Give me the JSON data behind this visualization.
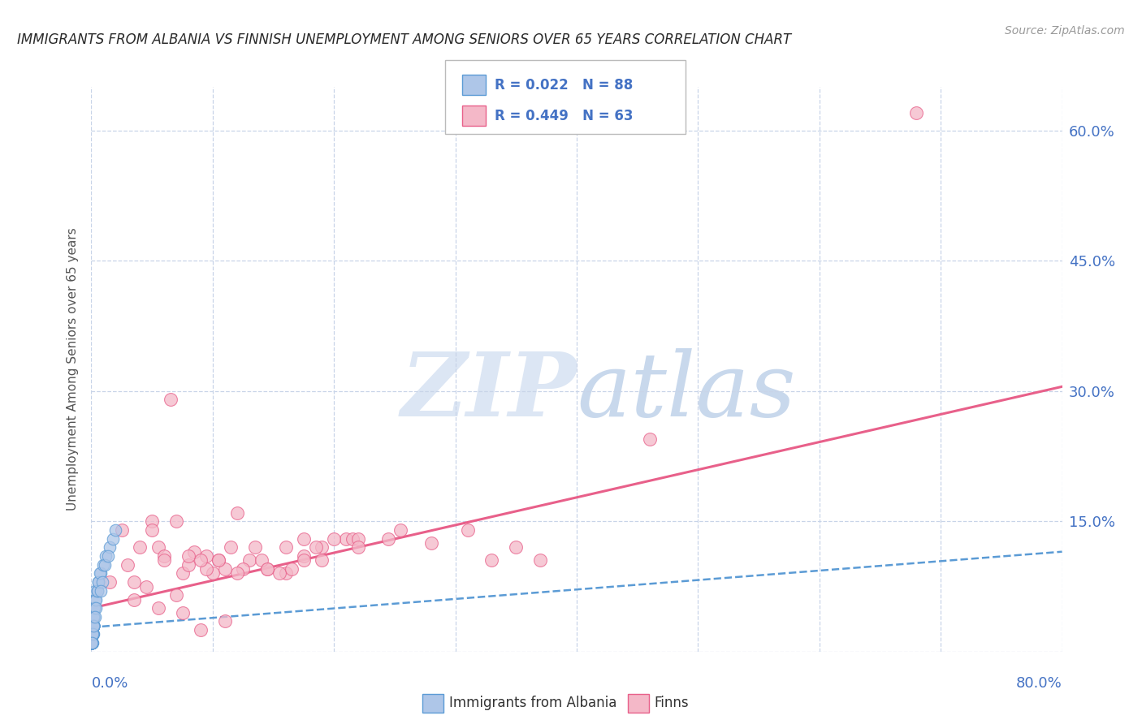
{
  "title": "IMMIGRANTS FROM ALBANIA VS FINNISH UNEMPLOYMENT AMONG SENIORS OVER 65 YEARS CORRELATION CHART",
  "source": "Source: ZipAtlas.com",
  "ylabel": "Unemployment Among Seniors over 65 years",
  "xlim": [
    0.0,
    0.8
  ],
  "ylim": [
    0.0,
    0.65
  ],
  "legend_r1": "R = 0.022",
  "legend_n1": "N = 88",
  "legend_r2": "R = 0.449",
  "legend_n2": "N = 63",
  "blue_color": "#aec6e8",
  "blue_color_dark": "#5b9bd5",
  "blue_edge": "#5b9bd5",
  "pink_color": "#f4b8c8",
  "pink_color_dark": "#e8608a",
  "pink_edge": "#e8608a",
  "blue_scatter_x": [
    0.0005,
    0.001,
    0.0008,
    0.0015,
    0.001,
    0.0005,
    0.002,
    0.0015,
    0.001,
    0.0005,
    0.0025,
    0.0015,
    0.001,
    0.0005,
    0.002,
    0.001,
    0.0015,
    0.0005,
    0.003,
    0.001,
    0.0005,
    0.0015,
    0.001,
    0.002,
    0.0005,
    0.001,
    0.0015,
    0.0005,
    0.0025,
    0.001,
    0.0005,
    0.0015,
    0.001,
    0.002,
    0.0005,
    0.001,
    0.0015,
    0.003,
    0.0005,
    0.001,
    0.0015,
    0.0005,
    0.002,
    0.001,
    0.0005,
    0.0015,
    0.001,
    0.0025,
    0.0005,
    0.001,
    0.0015,
    0.0005,
    0.002,
    0.001,
    0.0015,
    0.0005,
    0.001,
    0.002,
    0.0005,
    0.0015,
    0.001,
    0.0005,
    0.0025,
    0.001,
    0.0015,
    0.0005,
    0.001,
    0.002,
    0.0005,
    0.0015,
    0.006,
    0.004,
    0.005,
    0.008,
    0.004,
    0.005,
    0.006,
    0.003,
    0.007,
    0.01,
    0.012,
    0.009,
    0.011,
    0.015,
    0.008,
    0.014,
    0.018,
    0.02
  ],
  "blue_scatter_y": [
    0.02,
    0.03,
    0.01,
    0.04,
    0.02,
    0.01,
    0.03,
    0.02,
    0.02,
    0.01,
    0.05,
    0.03,
    0.02,
    0.01,
    0.04,
    0.02,
    0.03,
    0.01,
    0.06,
    0.02,
    0.01,
    0.03,
    0.02,
    0.04,
    0.01,
    0.02,
    0.03,
    0.01,
    0.05,
    0.02,
    0.01,
    0.03,
    0.02,
    0.04,
    0.01,
    0.02,
    0.03,
    0.07,
    0.01,
    0.02,
    0.03,
    0.01,
    0.04,
    0.02,
    0.01,
    0.03,
    0.02,
    0.05,
    0.01,
    0.02,
    0.03,
    0.01,
    0.04,
    0.02,
    0.03,
    0.01,
    0.02,
    0.04,
    0.01,
    0.03,
    0.02,
    0.01,
    0.05,
    0.02,
    0.03,
    0.01,
    0.02,
    0.04,
    0.01,
    0.03,
    0.08,
    0.06,
    0.07,
    0.09,
    0.05,
    0.07,
    0.08,
    0.04,
    0.09,
    0.1,
    0.11,
    0.08,
    0.1,
    0.12,
    0.07,
    0.11,
    0.13,
    0.14
  ],
  "pink_scatter_x": [
    0.015,
    0.03,
    0.055,
    0.075,
    0.095,
    0.115,
    0.025,
    0.06,
    0.08,
    0.1,
    0.12,
    0.05,
    0.035,
    0.13,
    0.145,
    0.16,
    0.175,
    0.19,
    0.21,
    0.065,
    0.085,
    0.105,
    0.125,
    0.04,
    0.155,
    0.175,
    0.2,
    0.05,
    0.08,
    0.095,
    0.12,
    0.14,
    0.165,
    0.185,
    0.215,
    0.06,
    0.11,
    0.16,
    0.19,
    0.22,
    0.255,
    0.09,
    0.135,
    0.175,
    0.07,
    0.105,
    0.145,
    0.22,
    0.245,
    0.045,
    0.28,
    0.31,
    0.33,
    0.35,
    0.37,
    0.68,
    0.07,
    0.035,
    0.055,
    0.075,
    0.09,
    0.11,
    0.46
  ],
  "pink_scatter_y": [
    0.08,
    0.1,
    0.12,
    0.09,
    0.11,
    0.12,
    0.14,
    0.11,
    0.1,
    0.09,
    0.16,
    0.15,
    0.08,
    0.105,
    0.095,
    0.09,
    0.11,
    0.12,
    0.13,
    0.29,
    0.115,
    0.105,
    0.095,
    0.12,
    0.09,
    0.105,
    0.13,
    0.14,
    0.11,
    0.095,
    0.09,
    0.105,
    0.095,
    0.12,
    0.13,
    0.105,
    0.095,
    0.12,
    0.105,
    0.13,
    0.14,
    0.105,
    0.12,
    0.13,
    0.15,
    0.105,
    0.095,
    0.12,
    0.13,
    0.075,
    0.125,
    0.14,
    0.105,
    0.12,
    0.105,
    0.62,
    0.065,
    0.06,
    0.05,
    0.045,
    0.025,
    0.035,
    0.245
  ],
  "blue_line_x": [
    0.0,
    0.8
  ],
  "blue_line_y": [
    0.028,
    0.115
  ],
  "pink_line_x": [
    0.0,
    0.8
  ],
  "pink_line_y": [
    0.05,
    0.305
  ],
  "background_color": "#ffffff",
  "grid_color": "#c8d4e8",
  "title_color": "#2a2a2a",
  "tick_color": "#4472c4",
  "label_color": "#555555",
  "watermark_zip_color": "#dce6f4",
  "watermark_atlas_color": "#c8d8ec"
}
